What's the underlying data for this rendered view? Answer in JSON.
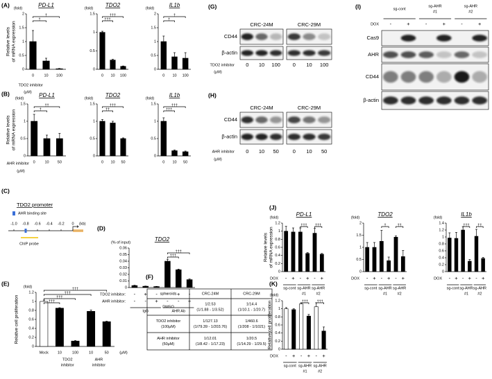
{
  "panel_labels": [
    "(A)",
    "(B)",
    "(C)",
    "(D)",
    "(E)",
    "(F)",
    "(G)",
    "(H)",
    "(I)",
    "(J)",
    "(K)"
  ],
  "chart_data": [
    {
      "type": "bar",
      "title": "PD-L1",
      "y_unit": "(fold)",
      "ylabel": [
        "Relative levels",
        "of mRNA expression"
      ],
      "categories": [
        "0",
        "10",
        "100"
      ],
      "xlabel": "TDO2 inhibitor",
      "x_unit": "(μM)",
      "values": [
        1.0,
        0.3,
        0.02
      ],
      "errors": [
        0.4,
        0.1,
        0.01
      ],
      "color": "#000000",
      "ylim": [
        0,
        2
      ],
      "yticks": [
        0,
        0.5,
        1,
        1.5,
        2
      ],
      "annotations": [
        "†",
        "†"
      ]
    },
    {
      "type": "bar",
      "title": "TDO2",
      "y_unit": "(fold)",
      "categories": [
        "0",
        "10",
        "100"
      ],
      "values": [
        1.0,
        0.25,
        0.08
      ],
      "errors": [
        0.03,
        0.02,
        0.01
      ],
      "color": "#000000",
      "ylim": [
        0,
        1.5
      ],
      "yticks": [
        0,
        0.5,
        1,
        1.5
      ],
      "annotations": [
        "†††",
        "†††"
      ]
    },
    {
      "type": "bar",
      "title": "IL1b",
      "y_unit": "(fold)",
      "categories": [
        "0",
        "10",
        "100"
      ],
      "values": [
        1.0,
        0.45,
        0.4
      ],
      "errors": [
        0.2,
        0.15,
        0.2
      ],
      "color": "#000000",
      "ylim": [
        0,
        2
      ],
      "yticks": [
        0,
        0.5,
        1,
        1.5,
        2
      ],
      "annotations": [
        "†",
        "†"
      ]
    },
    {
      "type": "bar",
      "title": "PD-L1",
      "y_unit": "(fold)",
      "ylabel": [
        "Relative levels",
        "of mRNA expression"
      ],
      "categories": [
        "0",
        "10",
        "50"
      ],
      "xlabel": "AHR inhibitor",
      "x_unit": "(μM)",
      "values": [
        1.0,
        0.5,
        0.5
      ],
      "errors": [
        0.2,
        0.1,
        0.15
      ],
      "color": "#000000",
      "ylim": [
        0,
        1.5
      ],
      "yticks": [
        0,
        0.5,
        1,
        1.5
      ],
      "annotations": [
        "††",
        "†"
      ]
    },
    {
      "type": "bar",
      "title": "TDO2",
      "y_unit": "(fold)",
      "categories": [
        "0",
        "10",
        "50"
      ],
      "values": [
        1.0,
        0.95,
        0.5
      ],
      "errors": [
        0.05,
        0.05,
        0.02
      ],
      "color": "#000000",
      "ylim": [
        0,
        1.5
      ],
      "yticks": [
        0,
        0.5,
        1,
        1.5
      ],
      "annotations": [
        "†††",
        "††"
      ]
    },
    {
      "type": "bar",
      "title": "IL1b",
      "y_unit": "(fold)",
      "categories": [
        "0",
        "10",
        "50"
      ],
      "values": [
        1.0,
        0.15,
        0.12
      ],
      "errors": [
        0.1,
        0.02,
        0.02
      ],
      "color": "#000000",
      "ylim": [
        0,
        1.5
      ],
      "yticks": [
        0,
        0.5,
        1,
        1.5
      ],
      "annotations": [
        "†††",
        "†††"
      ]
    },
    {
      "type": "bar",
      "title": "TDO2",
      "y_unit": "(% of input)",
      "rows": [
        {
          "label": "TDO2 inhibitor:",
          "marks": [
            "-",
            "+",
            "-",
            "-",
            "+",
            "-"
          ]
        },
        {
          "label": "AHR inhibitor:",
          "marks": [
            "-",
            "-",
            "+",
            "-",
            "-",
            "+"
          ]
        }
      ],
      "groups": [
        [
          "IgG"
        ],
        [
          "AHR Ab"
        ]
      ],
      "values": [
        0.003,
        0.002,
        0.0015,
        0.04,
        0.027,
        0.012
      ],
      "errors": [
        0.0005,
        0.0003,
        0.0003,
        0.003,
        0.001,
        0.001
      ],
      "color": "#000000",
      "ylim": [
        0,
        0.06
      ],
      "yticks": [
        0,
        0.01,
        0.02,
        0.03,
        0.04,
        0.05,
        0.06
      ],
      "annotations": [
        "†††",
        "†††"
      ]
    },
    {
      "type": "bar",
      "y_unit": "(fold)",
      "ylabel": [
        "Relative cell proliferation"
      ],
      "categories": [
        "Mock",
        "10",
        "100",
        "10",
        "50"
      ],
      "x_unit": "(μM)",
      "groups": [
        [
          "TDO2",
          "inhibitor"
        ],
        [
          "AHR",
          "inhibitor"
        ]
      ],
      "values": [
        1.0,
        0.85,
        0.12,
        0.78,
        0.55
      ],
      "errors": [
        0.03,
        0.01,
        0.01,
        0.03,
        0.01
      ],
      "colors": [
        "#ffffff",
        "#000000",
        "#000000",
        "#000000",
        "#000000"
      ],
      "ylim": [
        0,
        1.2
      ],
      "yticks": [
        0,
        0.2,
        0.4,
        0.6,
        0.8,
        1,
        1.2
      ],
      "annotations": [
        "†††",
        "†††",
        "†††",
        "†††"
      ]
    },
    {
      "type": "bar",
      "title": "PD-L1",
      "y_unit": "(fold)",
      "ylabel": [
        "Relative levels",
        "of mRNA expression"
      ],
      "rows": [
        {
          "label": "DOX",
          "marks": [
            "-",
            "+",
            "-",
            "+",
            "-",
            "+"
          ]
        }
      ],
      "groups": [
        [
          "sg-cont"
        ],
        [
          "sg-AHR",
          "#1"
        ],
        [
          "sg-AHR",
          "#2"
        ]
      ],
      "values": [
        1.0,
        0.98,
        0.98,
        0.45,
        0.95,
        0.43
      ],
      "errors": [
        0.12,
        0.1,
        0.1,
        0.02,
        0.12,
        0.02
      ],
      "color": "#000000",
      "ylim": [
        0,
        1.2
      ],
      "yticks": [
        0,
        0.2,
        0.4,
        0.6,
        0.8,
        1,
        1.2
      ],
      "annotations": [
        "†††",
        "†††"
      ]
    },
    {
      "type": "bar",
      "title": "TDO2",
      "y_unit": "(fold)",
      "rows": [
        {
          "label": "DOX",
          "marks": [
            "-",
            "+",
            "-",
            "+",
            "-",
            "+"
          ]
        }
      ],
      "groups": [
        [
          "sg-cont"
        ],
        [
          "sg-AHR",
          "#1"
        ],
        [
          "sg-AHR",
          "#2"
        ]
      ],
      "values": [
        1.0,
        1.0,
        1.25,
        0.45,
        1.42,
        0.62
      ],
      "errors": [
        0.2,
        0.2,
        0.45,
        0.15,
        0.05,
        0.25
      ],
      "color": "#000000",
      "ylim": [
        0,
        2
      ],
      "yticks": [
        0,
        0.5,
        1,
        1.5,
        2
      ],
      "annotations": [
        "†",
        "††"
      ]
    },
    {
      "type": "bar",
      "title": "IL1b",
      "y_unit": "(fold)",
      "rows": [
        {
          "label": "DOX",
          "marks": [
            "-",
            "+",
            "-",
            "+",
            "-",
            "+"
          ]
        }
      ],
      "groups": [
        [
          "sg-cont"
        ],
        [
          "sg-AHR",
          "#1"
        ],
        [
          "sg-AHR",
          "#2"
        ]
      ],
      "values": [
        0.97,
        0.96,
        1.2,
        0.3,
        1.02,
        0.38
      ],
      "errors": [
        0.15,
        0.17,
        0.1,
        0.05,
        0.2,
        0.03
      ],
      "color": "#000000",
      "ylim": [
        0,
        1.4
      ],
      "yticks": [
        0,
        0.2,
        0.4,
        0.6,
        0.8,
        1,
        1.2,
        1.4
      ],
      "annotations": [
        "†††",
        "††"
      ]
    },
    {
      "type": "bar",
      "y_unit": "(fold)",
      "ylabel": [
        "Relative cell proliferation"
      ],
      "rows": [
        {
          "label": "DOX",
          "marks": [
            "-",
            "+",
            "-",
            "+",
            "-",
            "+"
          ]
        }
      ],
      "groups": [
        [
          "sg-cont"
        ],
        [
          "sg-AHR",
          "#1"
        ],
        [
          "sg-AHR",
          "#2"
        ]
      ],
      "values": [
        1.0,
        0.98,
        1.12,
        0.82,
        1.05,
        0.45
      ],
      "errors": [
        0.03,
        0.02,
        0.03,
        0.04,
        0.1,
        0.1
      ],
      "colors": [
        "#ffffff",
        "#000000",
        "#ffffff",
        "#000000",
        "#ffffff",
        "#000000"
      ],
      "ylim": [
        0,
        1.2
      ],
      "yticks": [
        0,
        0.2,
        0.4,
        0.6,
        0.8,
        1,
        1.2
      ],
      "annotations": [
        "†††",
        "†††"
      ]
    }
  ],
  "diagram": {
    "title": "TDO2 promoter",
    "legend": "AHR binding site",
    "ticks": [
      {
        "value": -1,
        "label": "-1.0"
      },
      -0.8,
      -0.6,
      -0.4,
      -0.2,
      0
    ],
    "unit": "(kb)",
    "probe_label": "ChIP probe",
    "site_color": "#3a6fd8",
    "probe_color": "#f2c200"
  },
  "table": {
    "header": [
      "spheroids",
      "CRC-24M",
      "CRC-29M"
    ],
    "rows": [
      [
        [
          "DMSO"
        ],
        [
          "1/2.53",
          "(1/1.88 - 1/3.52)"
        ],
        [
          "1/14.4",
          "(1/10.1 - 1/20.7)"
        ]
      ],
      [
        [
          "TDO2 inhibitor",
          "(100μM)"
        ],
        [
          "1/127.13",
          "(1/79.39 - 1/203.76)"
        ],
        [
          "1/460.6",
          "(1/208 - 1/1021)"
        ]
      ],
      [
        [
          "AHR inhibitor",
          "(50μM)"
        ],
        [
          "1/12.01",
          "(1/8.42 - 1/17.23)"
        ],
        [
          "1/20.5",
          "(1/14.29 - 1/29.5)"
        ]
      ]
    ]
  },
  "blots": [
    {
      "lines": [
        "CRC-24M",
        "CRC-29M"
      ],
      "rows": [
        "CD44",
        "β-actin"
      ],
      "lanes": [
        [
          "0",
          "10",
          "100"
        ],
        [
          "0",
          "10",
          "100"
        ]
      ],
      "xlabel": "TDO2 inhibitor",
      "x_unit": "(μM)"
    },
    {
      "lines": [
        "CRC-24M",
        "CRC-29M"
      ],
      "rows": [
        "CD44",
        "β-actin"
      ],
      "lanes": [
        [
          "0",
          "10",
          "50"
        ],
        [
          "0",
          "10",
          "50"
        ]
      ],
      "xlabel": "AHR inhibitor",
      "x_unit": "(μM)"
    },
    {
      "columns": [
        [
          "sg-cont"
        ],
        [
          "sg-AHR",
          "#1"
        ],
        [
          "sg-AHR",
          "#2"
        ]
      ],
      "dox_label": "DOX",
      "dox": [
        "-",
        "+",
        "-",
        "+",
        "-",
        "+"
      ],
      "rows": [
        "Cas9",
        "AHR",
        "CD44",
        "β-actin"
      ]
    }
  ]
}
